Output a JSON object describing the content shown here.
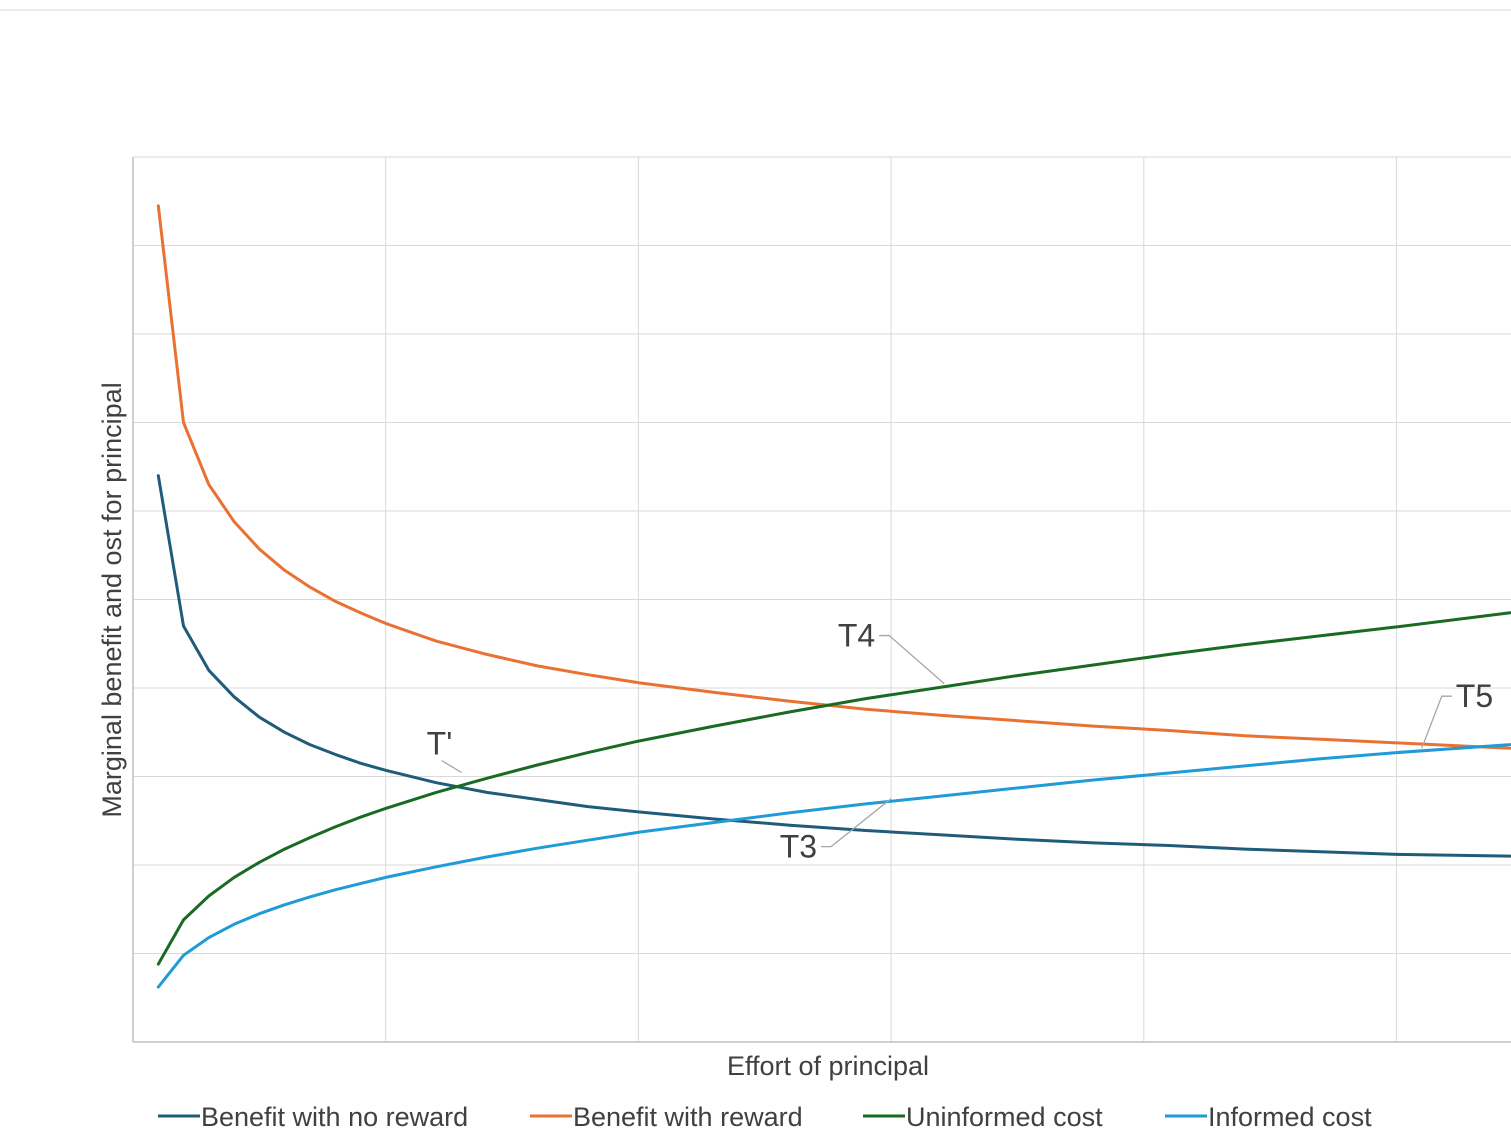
{
  "chart_data": {
    "type": "line",
    "title": "",
    "xlabel": "Effort of principal",
    "ylabel": "Marginal benefit and ost for principal",
    "xlim": [
      0,
      54.5
    ],
    "ylim": [
      0,
      10
    ],
    "x_ticks_visible": false,
    "y_ticks_visible": false,
    "grid": true,
    "legend": "bottom",
    "series": [
      {
        "name": "Benefit with no reward",
        "color": "#1F5C7A",
        "x": [
          1,
          2,
          3,
          4,
          5,
          6,
          7,
          8,
          9,
          10,
          12,
          14,
          16,
          18,
          20,
          23,
          26,
          29,
          32,
          35,
          38,
          41,
          44,
          47,
          50,
          54.5
        ],
        "y": [
          6.4,
          4.7,
          4.2,
          3.9,
          3.67,
          3.5,
          3.36,
          3.25,
          3.15,
          3.07,
          2.93,
          2.82,
          2.74,
          2.66,
          2.6,
          2.52,
          2.45,
          2.39,
          2.34,
          2.29,
          2.25,
          2.22,
          2.18,
          2.15,
          2.12,
          2.1
        ]
      },
      {
        "name": "Benefit with reward",
        "color": "#E97132",
        "x": [
          1,
          2,
          3,
          4,
          5,
          6,
          7,
          8,
          9,
          10,
          12,
          14,
          16,
          18,
          20,
          23,
          26,
          29,
          32,
          35,
          38,
          41,
          44,
          47,
          50,
          54.5
        ],
        "y": [
          9.45,
          7.0,
          6.3,
          5.88,
          5.57,
          5.33,
          5.14,
          4.98,
          4.85,
          4.73,
          4.53,
          4.38,
          4.25,
          4.15,
          4.06,
          3.95,
          3.85,
          3.76,
          3.69,
          3.63,
          3.57,
          3.52,
          3.46,
          3.42,
          3.38,
          3.32
        ]
      },
      {
        "name": "Uninformed cost",
        "color": "#196B24",
        "x": [
          1,
          2,
          3,
          4,
          5,
          6,
          7,
          8,
          9,
          10,
          12,
          14,
          16,
          18,
          20,
          23,
          26,
          29,
          32,
          35,
          38,
          41,
          44,
          47,
          50,
          54.5
        ],
        "y": [
          0.88,
          1.38,
          1.65,
          1.86,
          2.03,
          2.18,
          2.31,
          2.43,
          2.54,
          2.64,
          2.82,
          2.98,
          3.13,
          3.27,
          3.4,
          3.57,
          3.73,
          3.88,
          4.01,
          4.14,
          4.26,
          4.38,
          4.49,
          4.59,
          4.69,
          4.85
        ]
      },
      {
        "name": "Informed cost",
        "color": "#1F9BD7",
        "x": [
          1,
          2,
          3,
          4,
          5,
          6,
          7,
          8,
          9,
          10,
          12,
          14,
          16,
          18,
          20,
          23,
          26,
          29,
          32,
          35,
          38,
          41,
          44,
          47,
          50,
          54.5
        ],
        "y": [
          0.62,
          0.98,
          1.18,
          1.33,
          1.45,
          1.55,
          1.64,
          1.72,
          1.79,
          1.86,
          1.98,
          2.09,
          2.19,
          2.28,
          2.37,
          2.48,
          2.59,
          2.69,
          2.78,
          2.87,
          2.96,
          3.04,
          3.12,
          3.2,
          3.27,
          3.36
        ]
      }
    ],
    "annotations": [
      {
        "text": "T'",
        "x": 13,
        "y": 3.0,
        "label_pos": "above-left"
      },
      {
        "text": "T3",
        "x": 30,
        "y": 2.75,
        "label_pos": "below-left"
      },
      {
        "text": "T4",
        "x": 32.1,
        "y": 4.05,
        "label_pos": "above-left"
      },
      {
        "text": "T5",
        "x": 51,
        "y": 3.32,
        "label_pos": "above-right"
      }
    ]
  }
}
